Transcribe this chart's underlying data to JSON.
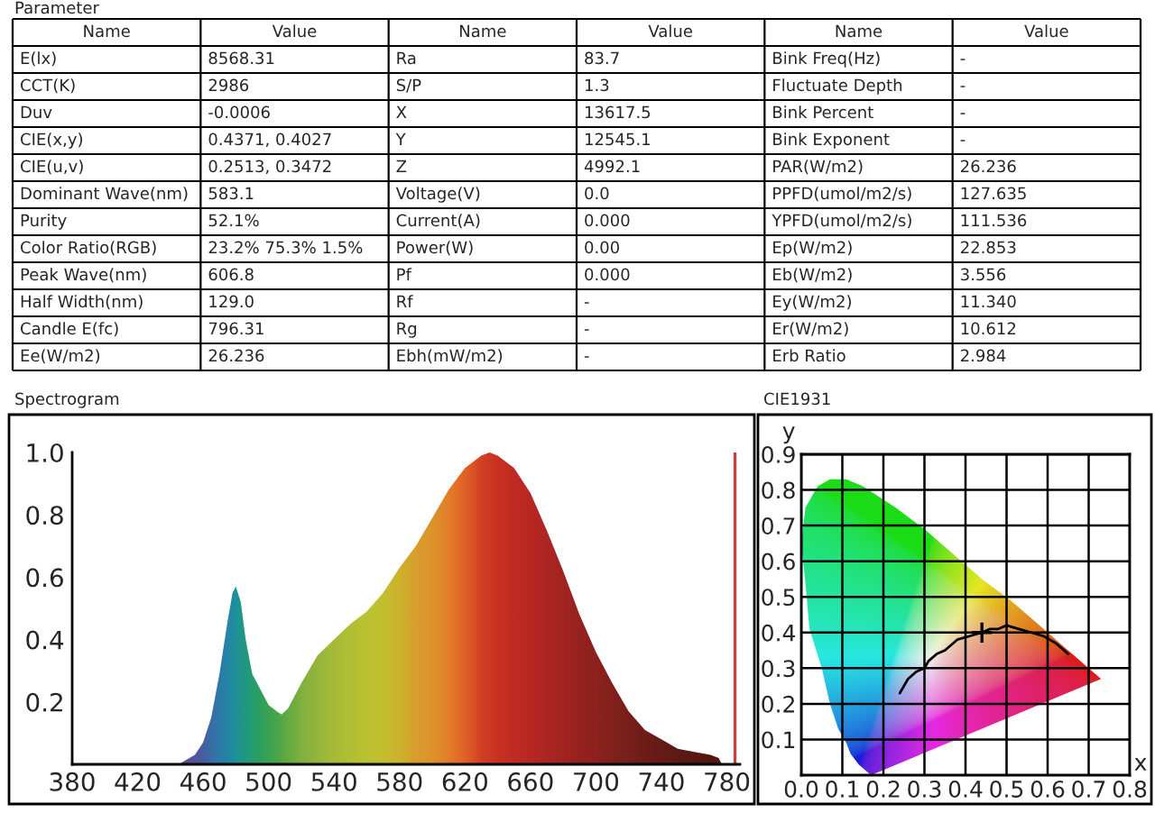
{
  "chart_data": [
    {
      "type": "other",
      "title": "Parameter",
      "annotations": [
        "Name",
        "Value",
        "Name",
        "Value",
        "Name",
        "Value",
        "E(lx)",
        "8568.31",
        "Ra",
        "83.7",
        "Bink Freq(Hz)",
        "-",
        "CCT(K)",
        "2986",
        "S/P",
        "1.3",
        "Fluctuate Depth",
        "-",
        "Duv",
        "-0.0006",
        "X",
        "13617.5",
        "Bink Percent",
        "-",
        "CIE(x,y)",
        "0.4371, 0.4027",
        "Y",
        "12545.1",
        "Bink Exponent",
        "-",
        "CIE(u,v)",
        "0.2513, 0.3472",
        "Z",
        "4992.1",
        "PAR(W/m2)",
        "26.236",
        "Dominant Wave(nm)",
        "583.1",
        "Voltage(V)",
        "0.0",
        "PPFD(umol/m2/s)",
        "127.635",
        "Purity",
        "52.1%",
        "Current(A)",
        "0.000",
        "YPFD(umol/m2/s)",
        "111.536",
        "Color Ratio(RGB)",
        "23.2% 75.3% 1.5%",
        "Power(W)",
        "0.00",
        "Ep(W/m2)",
        "22.853",
        "Peak Wave(nm)",
        "606.8",
        "Pf",
        "0.000",
        "Eb(W/m2)",
        "3.556",
        "Half Width(nm)",
        "129.0",
        "Rf",
        "-",
        "Ey(W/m2)",
        "11.340",
        "Candle E(fc)",
        "796.31",
        "Rg",
        "-",
        "Er(W/m2)",
        "10.612",
        "Ee(W/m2)",
        "26.236",
        "Ebh(mW/m2)",
        "-",
        "Erb Ratio",
        "2.984"
      ]
    },
    {
      "type": "area",
      "title": "Spectrogram",
      "x": [
        445,
        455,
        460,
        465,
        470,
        475,
        478,
        480,
        483,
        486,
        490,
        495,
        500,
        505,
        508,
        512,
        520,
        530,
        540,
        550,
        560,
        570,
        580,
        590,
        600,
        610,
        620,
        630,
        635,
        640,
        650,
        660,
        670,
        680,
        690,
        700,
        710,
        720,
        730,
        740,
        750,
        760,
        770,
        775,
        777
      ],
      "values": [
        0,
        0.03,
        0.07,
        0.15,
        0.29,
        0.46,
        0.55,
        0.57,
        0.52,
        0.4,
        0.29,
        0.24,
        0.19,
        0.17,
        0.16,
        0.18,
        0.26,
        0.35,
        0.4,
        0.45,
        0.49,
        0.55,
        0.63,
        0.7,
        0.79,
        0.88,
        0.95,
        0.99,
        1.0,
        0.99,
        0.95,
        0.87,
        0.75,
        0.62,
        0.48,
        0.36,
        0.26,
        0.17,
        0.11,
        0.08,
        0.05,
        0.04,
        0.03,
        0.02,
        0
      ],
      "colors": [
        "#5b4b9e",
        "#4a55a8",
        "#3d60b0",
        "#2f6fb6",
        "#1f80b8",
        "#168cb4",
        "#1293ad",
        "#1098a6",
        "#109e98",
        "#12a288",
        "#18a678",
        "#22a962",
        "#30ac55",
        "#44b04c",
        "#50b248",
        "#60b545",
        "#80bc40",
        "#98c23c",
        "#aac838",
        "#b8cc34",
        "#c2d030",
        "#cccc2e",
        "#d8bc2c",
        "#e4a62c",
        "#e89a2c",
        "#f08028",
        "#ec6024",
        "#dc3a22",
        "#d63420",
        "#d02c20",
        "#c82420",
        "#be2020",
        "#b01e20",
        "#a41c1e",
        "#981a1c",
        "#8c181a",
        "#801818",
        "#741616",
        "#6a1414",
        "#601212",
        "#581010",
        "#520e0e",
        "#4c0c0c",
        "#4a0c0c",
        "#480b0b"
      ],
      "xlim": [
        380,
        788
      ],
      "ylim": [
        0,
        1.0
      ],
      "xticks": [
        380,
        420,
        460,
        500,
        540,
        580,
        620,
        660,
        700,
        740,
        780
      ],
      "yticks": [
        0.2,
        0.4,
        0.6,
        0.8,
        {
          "value": 1,
          "label": "1.0"
        }
      ],
      "ref_lines": [
        {
          "axis": "x",
          "value": 785,
          "color": "#c84040"
        }
      ]
    },
    {
      "type": "line",
      "title": "CIE1931",
      "xlabel": "x",
      "ylabel": "y",
      "series": [
        {
          "type": "area",
          "x": [
            0.17,
            0.14,
            0.12,
            0.11,
            0.09,
            0.07,
            0.05,
            0.02,
            0.01,
            0.0,
            0.01,
            0.04,
            0.07,
            0.11,
            0.15,
            0.23,
            0.3,
            0.37,
            0.44,
            0.51,
            0.58,
            0.63,
            0.67,
            0.69,
            0.72,
            0.73
          ],
          "values": [
            0.0,
            0.03,
            0.06,
            0.09,
            0.13,
            0.2,
            0.3,
            0.41,
            0.54,
            0.65,
            0.75,
            0.81,
            0.83,
            0.83,
            0.81,
            0.75,
            0.69,
            0.62,
            0.55,
            0.49,
            0.42,
            0.37,
            0.33,
            0.31,
            0.28,
            0.27
          ]
        },
        {
          "type": "line",
          "color": "#000000",
          "x": [
            0.24,
            0.25,
            0.26,
            0.27,
            0.28,
            0.3,
            0.31,
            0.33,
            0.35,
            0.38,
            0.41,
            0.44,
            0.46,
            0.48,
            0.5,
            0.53,
            0.56,
            0.59,
            0.62,
            0.65
          ],
          "values": [
            0.23,
            0.25,
            0.27,
            0.28,
            0.29,
            0.3,
            0.32,
            0.34,
            0.35,
            0.38,
            0.39,
            0.4,
            0.41,
            0.41,
            0.42,
            0.41,
            0.4,
            0.39,
            0.37,
            0.34
          ]
        },
        {
          "type": "scatter",
          "color": "#000000",
          "marker": "cross",
          "x": [
            0.44
          ],
          "values": [
            0.4
          ]
        }
      ],
      "xlim": [
        0.0,
        0.8
      ],
      "ylim": [
        0.0,
        0.9
      ],
      "xticks": [
        {
          "value": 0,
          "label": "0.0"
        },
        0.1,
        0.2,
        0.3,
        0.4,
        0.5,
        0.6,
        0.7,
        0.8
      ],
      "yticks": [
        0.1,
        0.2,
        0.3,
        0.4,
        0.5,
        0.6,
        0.7,
        0.8,
        0.9
      ],
      "grid": true
    }
  ]
}
